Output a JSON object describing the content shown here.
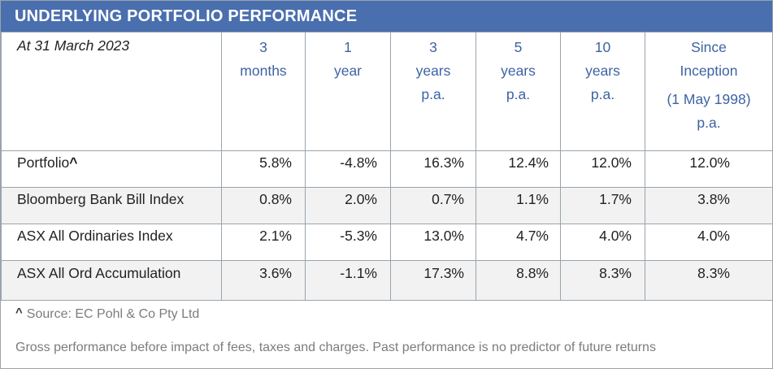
{
  "title": "UNDERLYING PORTFOLIO PERFORMANCE",
  "as_at": "At 31 March 2023",
  "columns": [
    {
      "lines": [
        "3",
        "months"
      ]
    },
    {
      "lines": [
        "1",
        "year"
      ]
    },
    {
      "lines": [
        "3",
        "years",
        "p.a."
      ]
    },
    {
      "lines": [
        "5",
        "years",
        "p.a."
      ]
    },
    {
      "lines": [
        "10",
        "years",
        "p.a."
      ]
    },
    {
      "lines": [
        "Since",
        "Inception",
        "(1 May 1998)",
        "p.a."
      ]
    }
  ],
  "rows": [
    {
      "label": "Portfolio",
      "marker": "^",
      "values": [
        "5.8%",
        "-4.8%",
        "16.3%",
        "12.4%",
        "12.0%",
        "12.0%"
      ]
    },
    {
      "label": "Bloomberg Bank Bill Index",
      "values": [
        "0.8%",
        "2.0%",
        "0.7%",
        "1.1%",
        "1.7%",
        "3.8%"
      ]
    },
    {
      "label": "ASX All Ordinaries Index",
      "values": [
        "2.1%",
        "-5.3%",
        "13.0%",
        "4.7%",
        "4.0%",
        "4.0%"
      ]
    },
    {
      "label": "ASX All Ord Accumulation",
      "values": [
        "3.6%",
        "-1.1%",
        "17.3%",
        "8.8%",
        "8.3%",
        "8.3%"
      ]
    }
  ],
  "footnotes": {
    "source_marker": "^",
    "source": "Source: EC Pohl & Co Pty Ltd",
    "disclaimer": "Gross performance before impact of fees, taxes and charges.  Past performance is no predictor of future returns"
  },
  "colors": {
    "banner": "#4a6fae",
    "header_text": "#3d63a3",
    "alt_row": "#f2f2f2",
    "border": "#9aa3ad"
  }
}
